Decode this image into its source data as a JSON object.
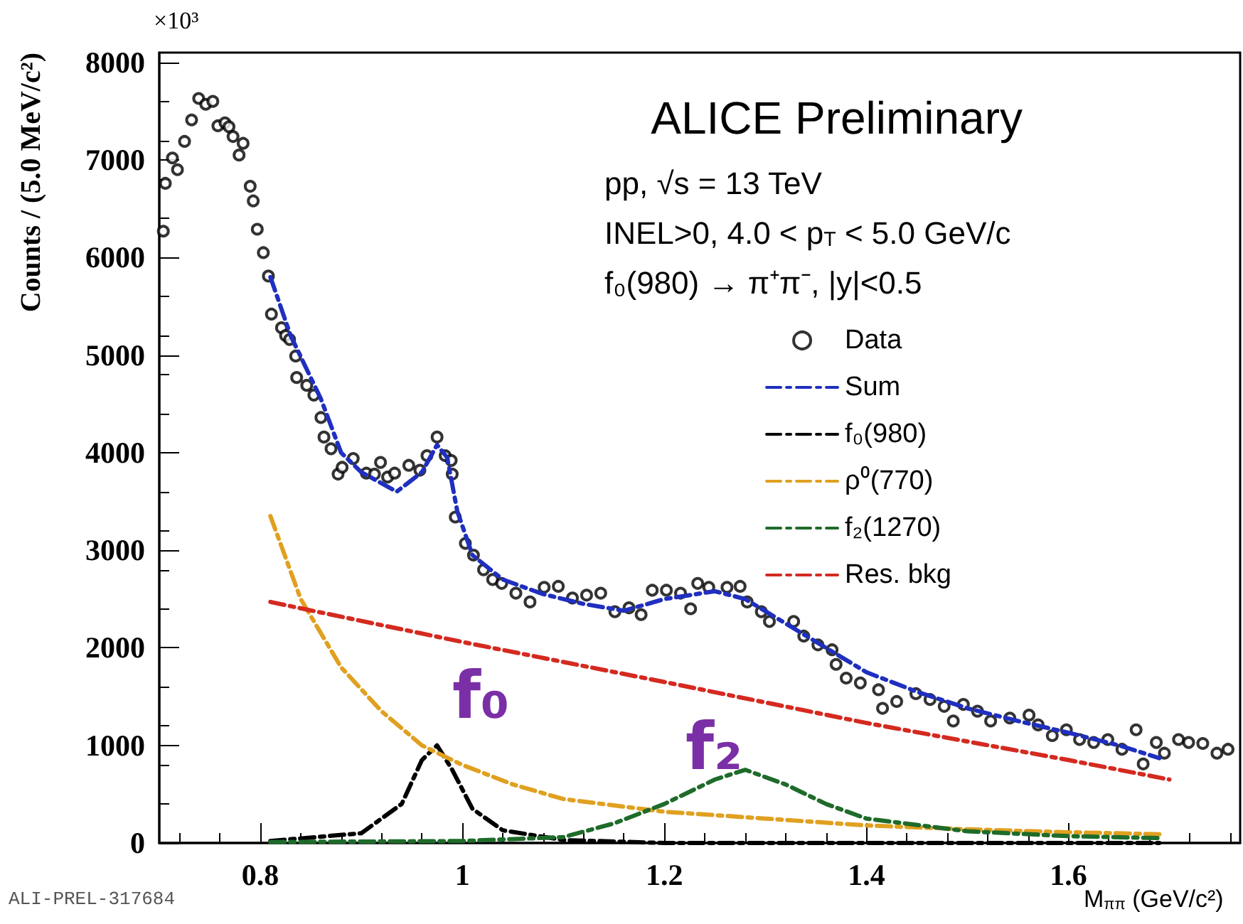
{
  "chart_data": {
    "type": "line",
    "title": "ALICE Preliminary",
    "xlabel": "M$_{ππ}$ (GeV/c²)",
    "ylabel": "Counts / (5.0 MeV/c²)",
    "annotations": [
      "pp, √s = 13 TeV",
      "INEL>0, 4.0 < p$_{T}$ < 5.0 GeV/c",
      "f₀(980) → π⁺π⁻, |y|<0.5",
      "ALI-PREL-317684",
      "×10³",
      "f₀",
      "f₂"
    ],
    "xlim": [
      0.7,
      1.77
    ],
    "xticks": [
      0.8,
      1,
      1.2,
      1.4,
      1.6
    ],
    "ylim": [
      0,
      8100
    ],
    "yticks": [
      0,
      1000,
      2000,
      3000,
      4000,
      5000,
      6000,
      7000,
      8000
    ],
    "grid": false,
    "legend": "right",
    "series": [
      {
        "name": "Data",
        "type": "scatter",
        "marker": "circle",
        "color": "#000000",
        "x": [
          0.704,
          0.706,
          0.713,
          0.718,
          0.725,
          0.732,
          0.739,
          0.746,
          0.753,
          0.758,
          0.765,
          0.769,
          0.773,
          0.779,
          0.783,
          0.79,
          0.793,
          0.797,
          0.803,
          0.808,
          0.811,
          0.821,
          0.825,
          0.829,
          0.835,
          0.836,
          0.846,
          0.853,
          0.86,
          0.863,
          0.87,
          0.877,
          0.881,
          0.892,
          0.905,
          0.913,
          0.919,
          0.926,
          0.933,
          0.947,
          0.958,
          0.965,
          0.975,
          0.983,
          0.989,
          0.99,
          0.993,
          1.003,
          1.011,
          1.021,
          1.03,
          1.039,
          1.053,
          1.067,
          1.081,
          1.095,
          1.109,
          1.123,
          1.137,
          1.151,
          1.165,
          1.177,
          1.188,
          1.202,
          1.216,
          1.226,
          1.233,
          1.244,
          1.262,
          1.275,
          1.282,
          1.296,
          1.304,
          1.328,
          1.338,
          1.352,
          1.366,
          1.37,
          1.38,
          1.394,
          1.412,
          1.416,
          1.43,
          1.449,
          1.463,
          1.477,
          1.486,
          1.496,
          1.51,
          1.523,
          1.542,
          1.561,
          1.57,
          1.584,
          1.598,
          1.611,
          1.625,
          1.639,
          1.653,
          1.667,
          1.674,
          1.687,
          1.695,
          1.709,
          1.719,
          1.733,
          1.747,
          1.758
        ],
        "values": [
          6270,
          6760,
          7020,
          6900,
          7190,
          7410,
          7630,
          7570,
          7600,
          7350,
          7380,
          7340,
          7240,
          7050,
          7170,
          6730,
          6580,
          6290,
          6050,
          5810,
          5420,
          5280,
          5200,
          5160,
          4990,
          4770,
          4690,
          4590,
          4360,
          4160,
          4040,
          3780,
          3850,
          3940,
          3790,
          3780,
          3900,
          3750,
          3790,
          3870,
          3820,
          3970,
          4160,
          3970,
          3920,
          3780,
          3340,
          3070,
          2950,
          2800,
          2700,
          2660,
          2560,
          2470,
          2620,
          2630,
          2510,
          2540,
          2560,
          2370,
          2410,
          2340,
          2590,
          2590,
          2560,
          2400,
          2660,
          2620,
          2620,
          2630,
          2470,
          2370,
          2270,
          2270,
          2120,
          2030,
          1980,
          1830,
          1690,
          1640,
          1570,
          1380,
          1450,
          1530,
          1470,
          1400,
          1250,
          1420,
          1350,
          1250,
          1280,
          1310,
          1210,
          1100,
          1160,
          1060,
          1030,
          1060,
          960,
          1160,
          810,
          1030,
          920,
          1060,
          1030,
          1020,
          920,
          960
        ]
      },
      {
        "name": "Sum",
        "color": "#1f2fbf",
        "line_style": "dashed",
        "marker": "none",
        "x": [
          0.81,
          0.83,
          0.86,
          0.88,
          0.9,
          0.935,
          0.96,
          0.975,
          0.985,
          0.995,
          1.01,
          1.04,
          1.08,
          1.12,
          1.16,
          1.2,
          1.25,
          1.28,
          1.32,
          1.36,
          1.4,
          1.45,
          1.5,
          1.55,
          1.6,
          1.65,
          1.69
        ],
        "values": [
          5800,
          5200,
          4550,
          4000,
          3800,
          3600,
          3800,
          4080,
          3950,
          3400,
          2950,
          2700,
          2550,
          2450,
          2380,
          2500,
          2580,
          2500,
          2250,
          2000,
          1750,
          1550,
          1380,
          1250,
          1130,
          1000,
          870
        ]
      },
      {
        "name": "f₀(980)",
        "color": "#000000",
        "line_style": "dashed",
        "marker": "none",
        "x": [
          0.81,
          0.9,
          0.94,
          0.96,
          0.975,
          0.99,
          1.01,
          1.04,
          1.1,
          1.2,
          1.69
        ],
        "values": [
          20,
          100,
          400,
          850,
          1000,
          750,
          350,
          130,
          30,
          0,
          0
        ]
      },
      {
        "name": "ρ⁰(770)",
        "color": "#e0a020",
        "line_style": "dashed",
        "marker": "none",
        "x": [
          0.81,
          0.84,
          0.88,
          0.92,
          0.96,
          1.0,
          1.05,
          1.1,
          1.2,
          1.3,
          1.4,
          1.5,
          1.6,
          1.69
        ],
        "values": [
          3350,
          2500,
          1800,
          1350,
          1000,
          800,
          600,
          450,
          320,
          250,
          180,
          140,
          110,
          90
        ]
      },
      {
        "name": "f₂(1270)",
        "color": "#1e6b2a",
        "line_style": "dashed",
        "marker": "none",
        "x": [
          0.81,
          1.0,
          1.1,
          1.15,
          1.2,
          1.25,
          1.28,
          1.32,
          1.36,
          1.4,
          1.5,
          1.6,
          1.69
        ],
        "values": [
          10,
          20,
          60,
          200,
          400,
          650,
          750,
          600,
          400,
          250,
          120,
          70,
          50
        ]
      },
      {
        "name": "Res. bkg",
        "color": "#d42a20",
        "line_style": "dashed",
        "marker": "none",
        "x": [
          0.81,
          1.0,
          1.2,
          1.4,
          1.6,
          1.7
        ],
        "values": [
          2470,
          2060,
          1650,
          1230,
          850,
          650
        ]
      }
    ]
  }
}
